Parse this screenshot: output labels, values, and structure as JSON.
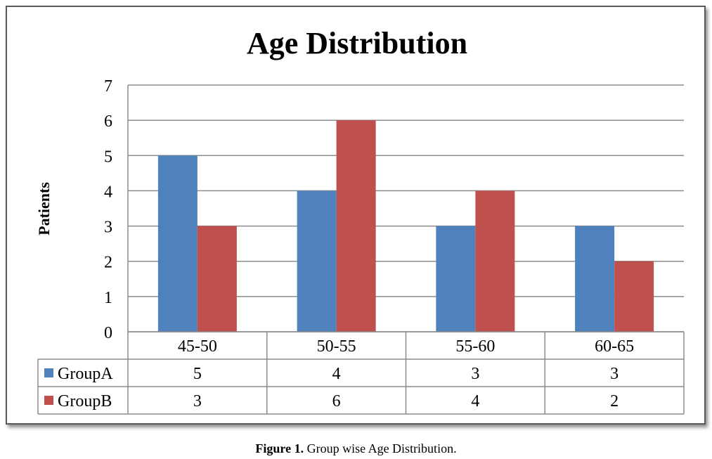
{
  "chart_data": {
    "type": "bar",
    "title": "Age Distribution",
    "xlabel": "",
    "ylabel": "Patients",
    "ylim": [
      0,
      7
    ],
    "yticks": [
      0,
      1,
      2,
      3,
      4,
      5,
      6,
      7
    ],
    "categories": [
      "45-50",
      "50-55",
      "55-60",
      "60-65"
    ],
    "series": [
      {
        "name": "GroupA",
        "color": "#4f81bd",
        "values": [
          5,
          4,
          3,
          3
        ]
      },
      {
        "name": "GroupB",
        "color": "#c0504d",
        "values": [
          3,
          6,
          4,
          2
        ]
      }
    ],
    "grid": true,
    "legend": "data-table"
  },
  "caption": {
    "label": "Figure 1.",
    "text": "Group wise Age Distribution."
  }
}
